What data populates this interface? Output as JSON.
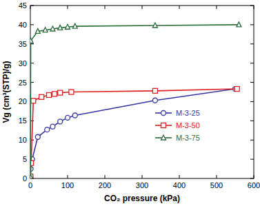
{
  "chart_data": {
    "type": "line",
    "x_label": "CO₂ pressure (kPa)",
    "y_label": "Vg (cm³(STP)/g)",
    "xlim": [
      0,
      600
    ],
    "xticks": [
      0,
      100,
      200,
      300,
      400,
      500,
      600
    ],
    "ylim": [
      0,
      45
    ],
    "yticks": [
      0,
      5,
      10,
      15,
      20,
      25,
      30,
      35,
      40,
      45
    ],
    "legend": "lower right",
    "series": [
      {
        "name": "M-3-25",
        "color": "#3535a8",
        "marker": "circle",
        "x": [
          0.5,
          1,
          5,
          20,
          45,
          60,
          80,
          100,
          120,
          335,
          550
        ],
        "values": [
          0.3,
          2.5,
          5,
          10.8,
          12.7,
          13.5,
          14.8,
          15.8,
          16.4,
          20.3,
          23.3
        ]
      },
      {
        "name": "M-3-50",
        "color": "#e02020",
        "marker": "square",
        "x": [
          0.5,
          2,
          8,
          30,
          50,
          65,
          80,
          110,
          335,
          555
        ],
        "values": [
          0.5,
          4,
          20.2,
          21.2,
          21.7,
          22,
          22.3,
          22.5,
          22.8,
          23.3
        ]
      },
      {
        "name": "M-3-75",
        "color": "#2b6e3c",
        "marker": "triangle",
        "x": [
          0.3,
          1,
          20,
          40,
          60,
          80,
          100,
          120,
          335,
          560
        ],
        "values": [
          0.3,
          35.8,
          38.3,
          38.6,
          38.9,
          39.2,
          39.4,
          39.6,
          39.8,
          40
        ]
      }
    ]
  }
}
